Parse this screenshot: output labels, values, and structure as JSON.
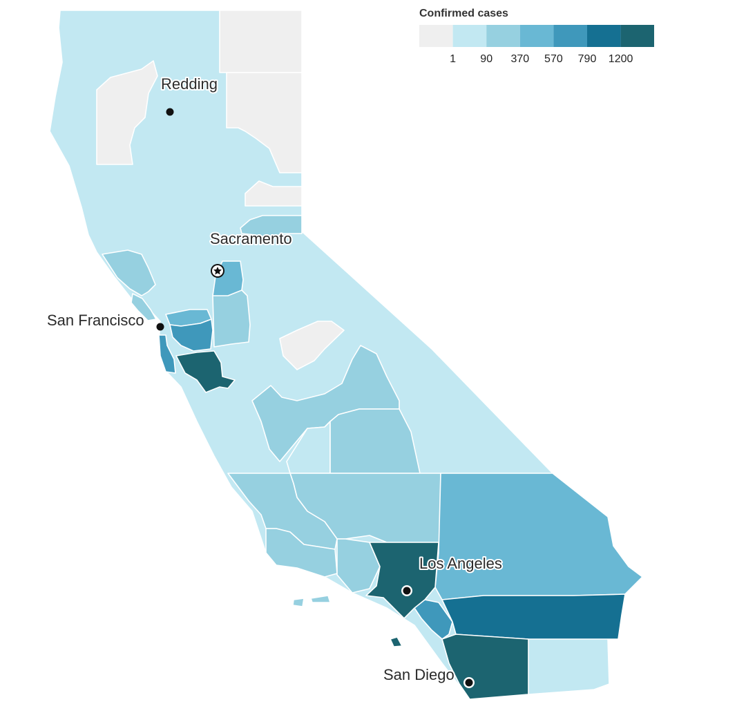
{
  "legend": {
    "title": "Confirmed cases",
    "ticks": [
      "1",
      "90",
      "370",
      "570",
      "790",
      "1200"
    ],
    "colors": [
      "#efefef",
      "#c2e8f2",
      "#96d0e0",
      "#69b8d4",
      "#3f98bb",
      "#157092",
      "#1c6470"
    ]
  },
  "cities": [
    {
      "id": "redding",
      "label": "Redding",
      "marker": "dot"
    },
    {
      "id": "sacramento",
      "label": "Sacramento",
      "marker": "star"
    },
    {
      "id": "san-francisco",
      "label": "San Francisco",
      "marker": "dot"
    },
    {
      "id": "los-angeles",
      "label": "Los Angeles",
      "marker": "ring"
    },
    {
      "id": "san-diego",
      "label": "San Diego",
      "marker": "ring"
    }
  ]
}
